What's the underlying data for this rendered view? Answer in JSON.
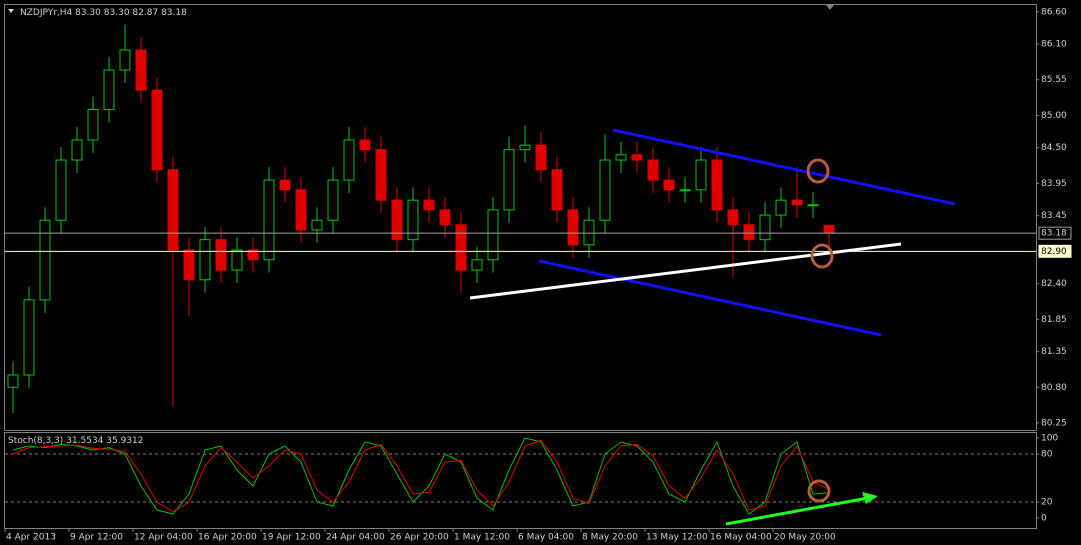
{
  "chart_data": [
    {
      "type": "candlestick",
      "title": "NZDJPYr,H4",
      "title_values": [
        "83.30",
        "83.30",
        "82.87",
        "83.18"
      ],
      "categories": [
        "4 Apr 2013",
        null,
        null,
        null,
        "9 Apr 12:00",
        null,
        null,
        null,
        "12 Apr 04:00",
        null,
        null,
        null,
        "16 Apr 20:00",
        null,
        null,
        null,
        "19 Apr 12:00",
        null,
        null,
        null,
        "24 Apr 04:00",
        null,
        null,
        null,
        "26 Apr 20:00",
        null,
        null,
        null,
        "1 May 12:00",
        null,
        null,
        null,
        "6 May 04:00",
        null,
        null,
        null,
        "8 May 20:00",
        null,
        null,
        null,
        "13 May 12:00",
        null,
        null,
        null,
        "16 May 04:00",
        null,
        null,
        null,
        "20 May 20:00",
        null,
        null,
        null
      ],
      "open": [
        80.8,
        80.99,
        82.15,
        83.38,
        84.31,
        84.62,
        85.09,
        85.7,
        86.01,
        85.39,
        84.16,
        82.92,
        82.46,
        83.08,
        82.61,
        82.92,
        82.77,
        84.0,
        83.85,
        83.23,
        83.38,
        84.0,
        84.62,
        84.47,
        83.69,
        83.08,
        83.69,
        83.54,
        83.31,
        82.61,
        82.77,
        83.54,
        84.47,
        84.54,
        84.16,
        83.54,
        83.0,
        83.38,
        84.31,
        84.39,
        84.31,
        84.0,
        83.85,
        83.85,
        84.31,
        83.54,
        83.31,
        83.08,
        83.46,
        83.69,
        83.62,
        83.3
      ],
      "high": [
        81.2,
        82.35,
        83.58,
        84.51,
        84.82,
        85.29,
        85.9,
        86.4,
        86.21,
        85.59,
        84.36,
        83.12,
        83.28,
        83.28,
        83.12,
        83.12,
        84.2,
        84.2,
        84.05,
        83.58,
        84.2,
        84.82,
        84.82,
        84.67,
        83.89,
        83.89,
        83.89,
        83.74,
        83.51,
        82.97,
        83.74,
        84.67,
        84.85,
        84.74,
        84.36,
        83.74,
        83.58,
        84.7,
        84.59,
        84.59,
        84.51,
        84.2,
        84.05,
        84.51,
        84.51,
        83.74,
        83.51,
        83.66,
        83.89,
        84.2,
        83.82,
        83.3
      ],
      "low": [
        80.4,
        80.79,
        81.95,
        83.18,
        84.11,
        84.42,
        84.89,
        85.5,
        85.19,
        83.96,
        80.5,
        81.9,
        82.26,
        82.41,
        82.41,
        82.57,
        82.57,
        83.65,
        83.03,
        83.03,
        83.18,
        83.8,
        84.27,
        83.49,
        82.88,
        82.88,
        83.34,
        83.11,
        82.25,
        82.41,
        82.57,
        83.34,
        84.27,
        83.96,
        83.34,
        82.8,
        82.8,
        83.18,
        84.11,
        84.11,
        83.8,
        83.65,
        83.65,
        83.65,
        83.34,
        82.5,
        82.88,
        82.88,
        83.26,
        83.42,
        83.42,
        82.87
      ],
      "close": [
        80.99,
        82.15,
        83.38,
        84.31,
        84.62,
        85.09,
        85.7,
        86.01,
        85.39,
        84.16,
        82.92,
        82.46,
        83.08,
        82.61,
        82.92,
        82.77,
        84.0,
        83.85,
        83.23,
        83.38,
        84.0,
        84.62,
        84.47,
        83.69,
        83.08,
        83.69,
        83.54,
        83.31,
        82.61,
        82.77,
        83.54,
        84.47,
        84.54,
        84.16,
        83.54,
        83.0,
        83.38,
        84.31,
        84.39,
        84.31,
        84.0,
        83.85,
        83.85,
        84.31,
        83.54,
        83.31,
        83.08,
        83.46,
        83.69,
        83.62,
        83.62,
        83.18
      ],
      "up_color": "#00c800",
      "down_color": "#e00000",
      "ylim": [
        80.14,
        86.72
      ],
      "yticks": [
        {
          "value": 86.6,
          "label": "86.60"
        },
        {
          "value": 86.1,
          "label": "86.10"
        },
        {
          "value": 85.55,
          "label": "85.55"
        },
        {
          "value": 85.0,
          "label": "85.00"
        },
        {
          "value": 84.5,
          "label": "84.50"
        },
        {
          "value": 83.95,
          "label": "83.95"
        },
        {
          "value": 83.45,
          "label": "83.45"
        },
        {
          "value": 82.4,
          "label": "82.40"
        },
        {
          "value": 81.85,
          "label": "81.85"
        },
        {
          "value": 81.35,
          "label": "81.35"
        },
        {
          "value": 80.8,
          "label": "80.80"
        },
        {
          "value": 80.25,
          "label": "80.25"
        }
      ],
      "hlines": [
        {
          "value": 83.18,
          "label": "83.18",
          "color": "#a0a0a0"
        },
        {
          "value": 82.9,
          "label": "82.90",
          "color": "#ffffd0"
        }
      ]
    },
    {
      "type": "line",
      "title": "Stoch(8,3,3)",
      "title_values": [
        "31.5534",
        "35.9312"
      ],
      "series": [
        {
          "color": "#00c000",
          "values": [
            85,
            90,
            88,
            92,
            90,
            85,
            88,
            80,
            40,
            10,
            5,
            30,
            85,
            90,
            60,
            40,
            80,
            90,
            70,
            20,
            15,
            60,
            95,
            90,
            55,
            20,
            40,
            80,
            70,
            25,
            10,
            60,
            100,
            95,
            60,
            15,
            20,
            80,
            95,
            90,
            70,
            30,
            20,
            60,
            95,
            40,
            5,
            20,
            80,
            95,
            30,
            31.5534
          ]
        },
        {
          "color": "#e00000",
          "values": [
            80,
            88,
            89,
            90,
            91,
            87,
            86,
            83,
            55,
            20,
            8,
            20,
            65,
            88,
            70,
            50,
            65,
            85,
            80,
            35,
            20,
            45,
            85,
            92,
            65,
            30,
            32,
            70,
            72,
            35,
            15,
            45,
            90,
            97,
            70,
            25,
            18,
            65,
            90,
            92,
            78,
            40,
            25,
            50,
            85,
            55,
            10,
            15,
            65,
            90,
            45,
            35.9312
          ]
        }
      ],
      "ylim": [
        -12.5,
        107.5
      ],
      "yticks": [
        100,
        80,
        20,
        0
      ],
      "levels": [
        80,
        20
      ]
    }
  ]
}
